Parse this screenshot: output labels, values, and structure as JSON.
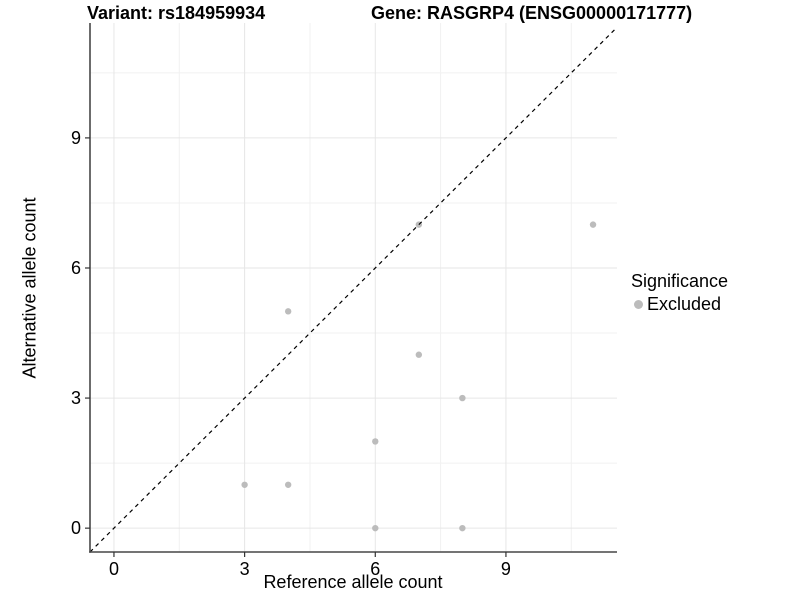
{
  "titles": {
    "variant": "Variant: rs184959934",
    "gene": "Gene: RASGRP4 (ENSG00000171777)"
  },
  "axes": {
    "x_label": "Reference allele count",
    "y_label": "Alternative allele count"
  },
  "legend": {
    "title": "Significance",
    "items": [
      {
        "label": "Excluded",
        "color": "#bcbcbc"
      }
    ]
  },
  "colors": {
    "point": "#bcbcbc",
    "axis_line": "#474747",
    "tick_mark": "#333333",
    "grid_major": "#e6e6e6",
    "grid_minor": "#f1f1f1",
    "reference_line": "#000000",
    "text": "#000000"
  },
  "chart_data": {
    "type": "scatter",
    "title": "Variant: rs184959934 — Gene: RASGRP4 (ENSG00000171777)",
    "xlabel": "Reference allele count",
    "ylabel": "Alternative allele count",
    "xlim": [
      -0.55,
      11.55
    ],
    "ylim": [
      -0.55,
      11.65
    ],
    "x_breaks": [
      0,
      3,
      6,
      9
    ],
    "y_breaks": [
      0,
      3,
      6,
      9
    ],
    "x_minor_breaks": [
      1.5,
      4.5,
      7.5,
      10.5
    ],
    "y_minor_breaks": [
      1.5,
      4.5,
      7.5,
      10.5
    ],
    "grid": true,
    "legend_position": "right",
    "reference_line": {
      "type": "identity y=x",
      "style": "dashed",
      "color": "#000000"
    },
    "series": [
      {
        "name": "Excluded",
        "color": "#bcbcbc",
        "points": [
          [
            3,
            1
          ],
          [
            4,
            1
          ],
          [
            4,
            5
          ],
          [
            6,
            0
          ],
          [
            6,
            2
          ],
          [
            7,
            4
          ],
          [
            7,
            7
          ],
          [
            8,
            0
          ],
          [
            8,
            3
          ],
          [
            11,
            7
          ]
        ]
      }
    ]
  }
}
